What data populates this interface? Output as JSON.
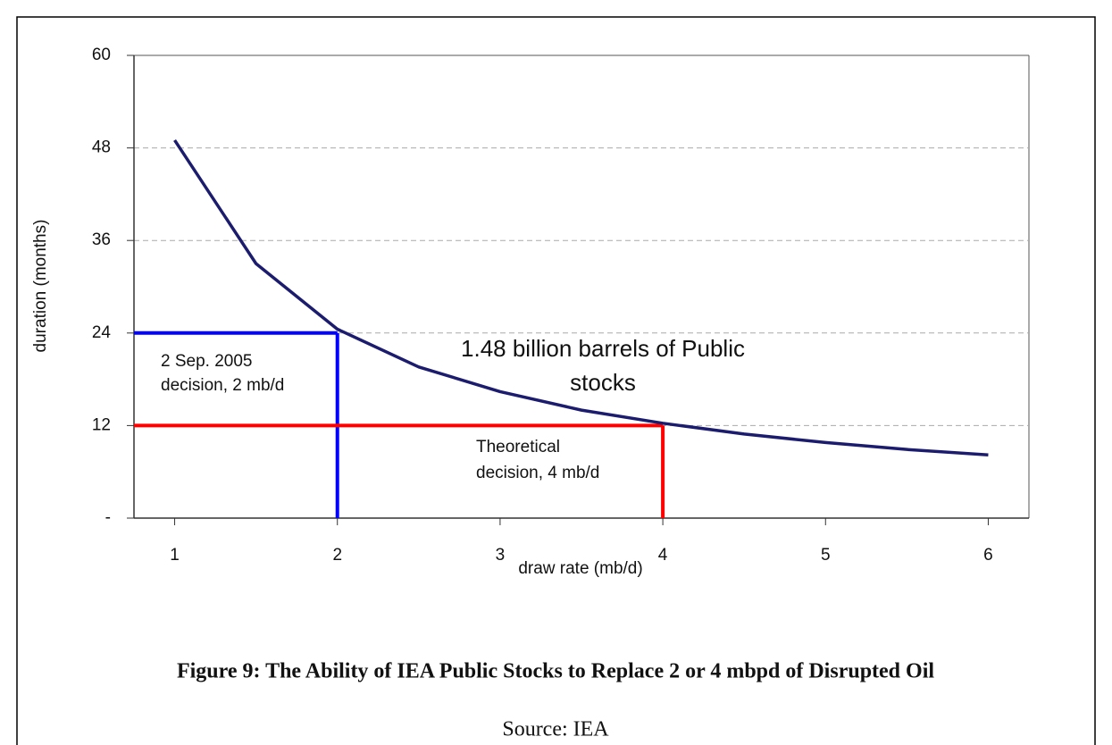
{
  "chart_data": {
    "type": "line",
    "xlabel": "draw rate (mb/d)",
    "ylabel": "duration (months)",
    "x": [
      1,
      1.5,
      2,
      2.5,
      3,
      3.5,
      4,
      4.5,
      5,
      5.5,
      6
    ],
    "series": [
      {
        "color": "#1c1c6e",
        "values": [
          49,
          33,
          24.5,
          19.6,
          16.4,
          14,
          12.3,
          10.9,
          9.8,
          8.9,
          8.2
        ]
      }
    ],
    "xlim": [
      0.75,
      6.25
    ],
    "xticks": [
      1,
      2,
      3,
      4,
      5,
      6
    ],
    "ylim": [
      0,
      60
    ],
    "yticks": [
      {
        "value": 0,
        "label": "-"
      },
      12,
      24,
      36,
      48,
      60
    ],
    "grid": true,
    "reference_lines": [
      {
        "x": 2,
        "y": 24,
        "color": "#0000ff",
        "label": [
          "2 Sep. 2005",
          "decision, 2 mb/d"
        ]
      },
      {
        "x": 4,
        "y": 12,
        "color": "#ff0000",
        "label": [
          "Theoretical",
          "decision, 4 mb/d"
        ]
      }
    ],
    "annotation": [
      "1.48 billion barrels of Public",
      "stocks"
    ],
    "caption": "Figure 9: The Ability of IEA Public Stocks to Replace 2 or 4 mbpd of Disrupted Oil",
    "source": "Source: IEA"
  }
}
